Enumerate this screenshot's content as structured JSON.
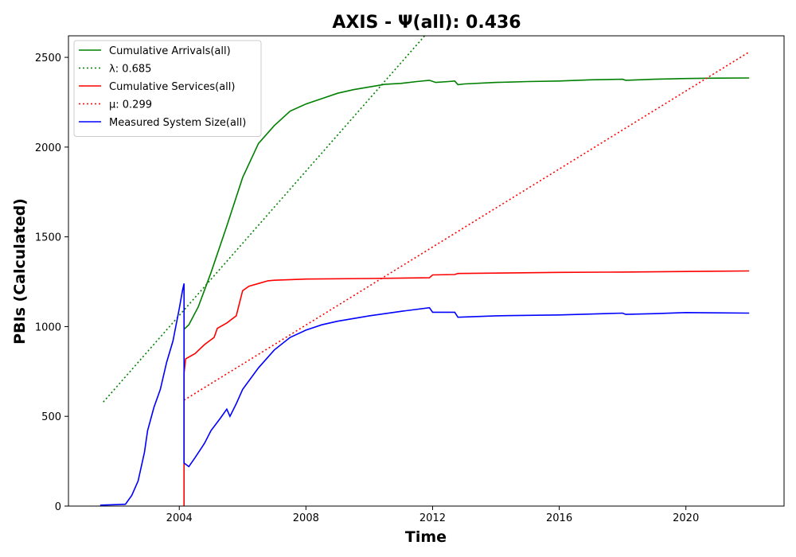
{
  "chart_data": {
    "type": "line",
    "title": "AXIS -  Ψ(all): 0.436",
    "xlabel": "Time",
    "ylabel": "PBIs (Calculated)",
    "xlim": [
      2000.5,
      2023.1
    ],
    "ylim": [
      0,
      2620
    ],
    "x_ticks": [
      2004,
      2008,
      2012,
      2016,
      2020
    ],
    "y_ticks": [
      0,
      500,
      1000,
      1500,
      2000,
      2500
    ],
    "grid": false,
    "legend_position": "top-left",
    "series": [
      {
        "name": "Cumulative Arrivals(all)",
        "color": "#008000",
        "style": "solid",
        "points": [
          [
            2004.15,
            985
          ],
          [
            2004.3,
            1010
          ],
          [
            2004.6,
            1110
          ],
          [
            2005.0,
            1300
          ],
          [
            2005.5,
            1560
          ],
          [
            2006.0,
            1830
          ],
          [
            2006.5,
            2020
          ],
          [
            2007.0,
            2120
          ],
          [
            2007.5,
            2200
          ],
          [
            2008.0,
            2240
          ],
          [
            2008.5,
            2270
          ],
          [
            2009.0,
            2300
          ],
          [
            2009.5,
            2320
          ],
          [
            2010.0,
            2335
          ],
          [
            2010.5,
            2350
          ],
          [
            2011.0,
            2355
          ],
          [
            2011.5,
            2365
          ],
          [
            2011.9,
            2372
          ],
          [
            2012.1,
            2360
          ],
          [
            2012.5,
            2365
          ],
          [
            2012.7,
            2368
          ],
          [
            2012.8,
            2348
          ],
          [
            2013.0,
            2352
          ],
          [
            2014.0,
            2360
          ],
          [
            2015.0,
            2365
          ],
          [
            2016.0,
            2368
          ],
          [
            2017.0,
            2375
          ],
          [
            2018.0,
            2378
          ],
          [
            2018.1,
            2372
          ],
          [
            2019.0,
            2378
          ],
          [
            2020.0,
            2382
          ],
          [
            2021.0,
            2384
          ],
          [
            2022.0,
            2385
          ]
        ]
      },
      {
        "name": "λ: 0.685",
        "color": "#008000",
        "style": "dotted",
        "points": [
          [
            2001.6,
            580
          ],
          [
            2011.9,
            2650
          ]
        ]
      },
      {
        "name": "Cumulative Services(all)",
        "color": "#ff0000",
        "style": "solid",
        "points": [
          [
            2004.15,
            0
          ],
          [
            2004.15,
            740
          ],
          [
            2004.2,
            820
          ],
          [
            2004.5,
            850
          ],
          [
            2004.8,
            900
          ],
          [
            2005.1,
            940
          ],
          [
            2005.2,
            990
          ],
          [
            2005.5,
            1020
          ],
          [
            2005.8,
            1060
          ],
          [
            2006.0,
            1200
          ],
          [
            2006.2,
            1225
          ],
          [
            2006.5,
            1240
          ],
          [
            2006.8,
            1255
          ],
          [
            2007.0,
            1258
          ],
          [
            2008.0,
            1265
          ],
          [
            2010.0,
            1268
          ],
          [
            2011.9,
            1272
          ],
          [
            2012.0,
            1288
          ],
          [
            2012.7,
            1290
          ],
          [
            2012.8,
            1296
          ],
          [
            2014.0,
            1298
          ],
          [
            2016.0,
            1302
          ],
          [
            2018.0,
            1304
          ],
          [
            2020.0,
            1307
          ],
          [
            2022.0,
            1310
          ]
        ]
      },
      {
        "name": "μ: 0.299",
        "color": "#ff0000",
        "style": "dotted",
        "points": [
          [
            2004.15,
            590
          ],
          [
            2022.0,
            2530
          ]
        ]
      },
      {
        "name": "Measured System Size(all)",
        "color": "#0000ff",
        "style": "solid",
        "points": [
          [
            2001.5,
            5
          ],
          [
            2002.0,
            8
          ],
          [
            2002.3,
            10
          ],
          [
            2002.5,
            60
          ],
          [
            2002.7,
            140
          ],
          [
            2002.9,
            300
          ],
          [
            2003.0,
            420
          ],
          [
            2003.2,
            550
          ],
          [
            2003.4,
            650
          ],
          [
            2003.6,
            800
          ],
          [
            2003.8,
            920
          ],
          [
            2004.0,
            1100
          ],
          [
            2004.1,
            1200
          ],
          [
            2004.15,
            1240
          ],
          [
            2004.15,
            240
          ],
          [
            2004.3,
            220
          ],
          [
            2004.5,
            270
          ],
          [
            2004.8,
            350
          ],
          [
            2005.0,
            420
          ],
          [
            2005.3,
            490
          ],
          [
            2005.5,
            540
          ],
          [
            2005.6,
            500
          ],
          [
            2005.8,
            570
          ],
          [
            2006.0,
            650
          ],
          [
            2006.5,
            770
          ],
          [
            2007.0,
            870
          ],
          [
            2007.5,
            940
          ],
          [
            2008.0,
            980
          ],
          [
            2008.5,
            1010
          ],
          [
            2009.0,
            1030
          ],
          [
            2010.0,
            1060
          ],
          [
            2011.0,
            1085
          ],
          [
            2011.9,
            1105
          ],
          [
            2012.0,
            1080
          ],
          [
            2012.7,
            1080
          ],
          [
            2012.8,
            1052
          ],
          [
            2014.0,
            1060
          ],
          [
            2016.0,
            1065
          ],
          [
            2018.0,
            1075
          ],
          [
            2018.1,
            1068
          ],
          [
            2019.0,
            1072
          ],
          [
            2020.0,
            1078
          ],
          [
            2022.0,
            1075
          ]
        ]
      }
    ]
  }
}
